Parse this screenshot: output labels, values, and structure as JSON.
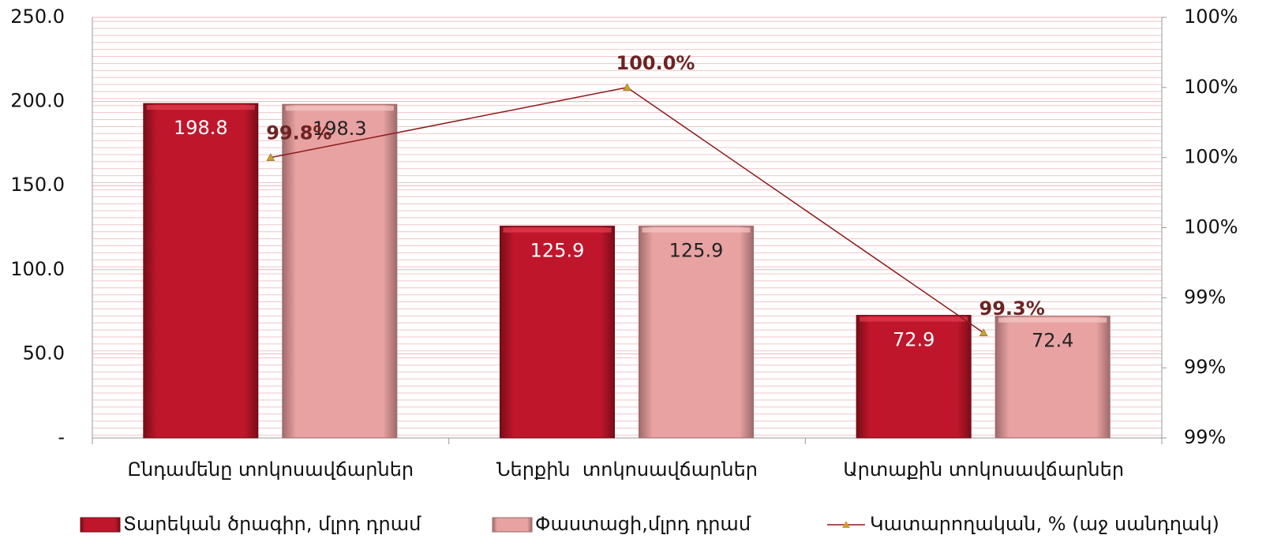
{
  "chart_data": {
    "type": "bar",
    "categories": [
      "Ընդամենը տոկոսավճարներ",
      "Ներքին  տոկոսավճարներ",
      "Արտաքին տոկոսավճարներ"
    ],
    "series": [
      {
        "name": "Տարեկան ծրագիր, մլրդ դրամ",
        "color": "#c0162b",
        "values": [
          198.8,
          125.9,
          72.9
        ]
      },
      {
        "name": "Փաստացի,մլրդ դրամ",
        "color": "#e8a2a2",
        "values": [
          198.3,
          125.9,
          72.4
        ]
      },
      {
        "name": "Կատարողական, % (աջ սանդղակ)",
        "color": "#8b1a1a",
        "type": "line",
        "axis": "y2",
        "values": [
          99.8,
          100.0,
          99.3
        ],
        "value_labels": [
          "99.8%",
          "100.0%",
          "99.3%"
        ]
      }
    ],
    "ylim": [
      0,
      250
    ],
    "yticks": [
      {
        "value": 0,
        "label": "-"
      },
      {
        "value": 50,
        "label": "50.0"
      },
      {
        "value": 100,
        "label": "100.0"
      },
      {
        "value": 150,
        "label": "150.0"
      },
      {
        "value": 200,
        "label": "200.0"
      },
      {
        "value": 250,
        "label": "250.0"
      }
    ],
    "y2lim": [
      99.0,
      100.2
    ],
    "y2ticks": [
      {
        "value": 99.0,
        "label": "99%"
      },
      {
        "value": 99.2,
        "label": "99%"
      },
      {
        "value": 99.4,
        "label": "99%"
      },
      {
        "value": 99.6,
        "label": "100%"
      },
      {
        "value": 99.8,
        "label": "100%"
      },
      {
        "value": 100.0,
        "label": "100%"
      },
      {
        "value": 100.2,
        "label": "100%"
      }
    ],
    "grid": true,
    "legend": "bottom"
  }
}
